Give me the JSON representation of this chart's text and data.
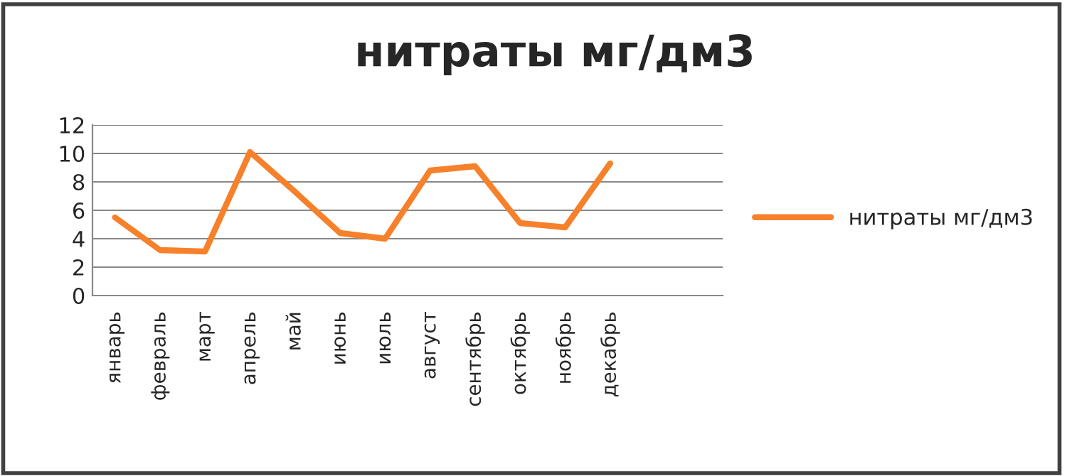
{
  "chart_data": {
    "type": "line",
    "title": "нитраты мг/дм3",
    "categories": [
      "январь",
      "февраль",
      "март",
      "апрель",
      "май",
      "июнь",
      "июль",
      "август",
      "сентябрь",
      "октябрь",
      "ноябрь",
      "декабрь",
      null,
      null
    ],
    "series": [
      {
        "name": "нитраты мг/дм3",
        "color": "#f7812b",
        "values": [
          5.5,
          3.2,
          3.1,
          10.1,
          7.3,
          4.4,
          4.0,
          8.8,
          9.1,
          5.1,
          4.8,
          9.3,
          null,
          null
        ]
      }
    ],
    "ylim": [
      0,
      12
    ],
    "yticks": [
      0,
      2,
      4,
      6,
      8,
      10,
      12
    ],
    "grid": "y",
    "legend": "right",
    "marker": "none",
    "line_style": "solid"
  }
}
